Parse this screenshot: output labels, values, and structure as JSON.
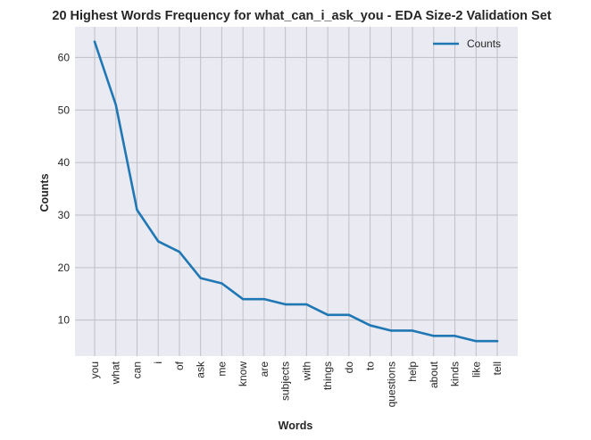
{
  "chart_data": {
    "type": "line",
    "title": "20 Highest Words Frequency for what_can_i_ask_you - EDA Size-2 Validation Set",
    "xlabel": "Words",
    "ylabel": "Counts",
    "categories": [
      "you",
      "what",
      "can",
      "i",
      "of",
      "ask",
      "me",
      "know",
      "are",
      "subjects",
      "with",
      "things",
      "do",
      "to",
      "questions",
      "help",
      "about",
      "kinds",
      "like",
      "tell"
    ],
    "series": [
      {
        "name": "Counts",
        "values": [
          63,
          51,
          31,
          25,
          23,
          18,
          17,
          14,
          14,
          13,
          13,
          11,
          11,
          9,
          8,
          8,
          7,
          7,
          6,
          6
        ]
      }
    ],
    "yticks": [
      10,
      20,
      30,
      40,
      50,
      60
    ],
    "ylim": [
      3.15,
      65.85
    ],
    "grid": true,
    "legend": "top-right",
    "colors": {
      "line": "#1f77b4",
      "plot_bg": "#eaeaf2",
      "grid": "#bfbfc6"
    }
  }
}
